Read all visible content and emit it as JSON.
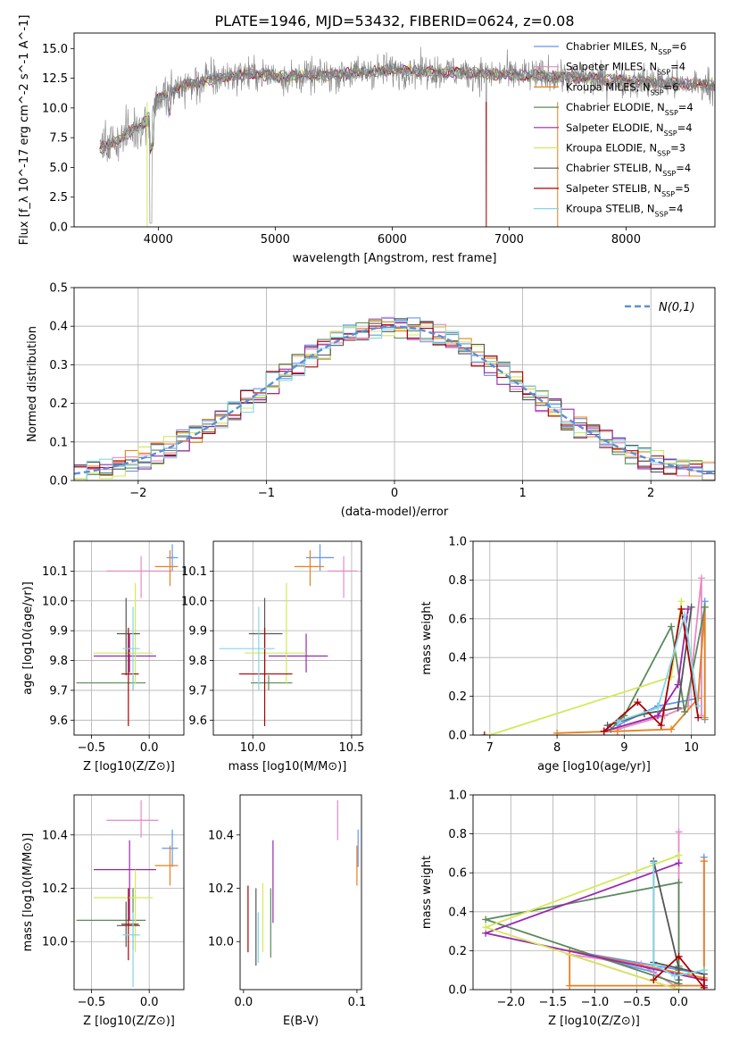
{
  "figure_title": "PLATE=1946, MJD=53432, FIBERID=0624, z=0.08",
  "colors": {
    "chab_miles": "#6495ed",
    "salp_miles": "#e78ac3",
    "krou_miles": "#e8801a",
    "chab_elodie": "#5b8a5b",
    "salp_elodie": "#9b27b0",
    "krou_elodie": "#d4e85a",
    "chab_stelib": "#555555",
    "salp_stelib": "#aa0000",
    "krou_stelib": "#80d8e6",
    "data": "#808080",
    "grid": "#b0b0b0"
  },
  "chart_data": [
    {
      "id": "spectrum",
      "type": "line",
      "title": "PLATE=1946, MJD=53432, FIBERID=0624, z=0.08",
      "xlabel": "wavelength [Angstrom, rest frame]",
      "ylabel": "Flux [f_λ 10^-17 erg cm^-2 s^-1 A^-1]",
      "xlim": [
        3280,
        8760
      ],
      "ylim": [
        0,
        16.3
      ],
      "xticks": [
        4000,
        5000,
        6000,
        7000,
        8000
      ],
      "yticks": [
        0.0,
        2.5,
        5.0,
        7.5,
        10.0,
        12.5,
        15.0
      ],
      "grid": false,
      "legend_position": "right",
      "legend": [
        {
          "key": "chab_miles",
          "label": "Chabrier MILES, N",
          "sub": "SSP",
          "tail": "=6"
        },
        {
          "key": "salp_miles",
          "label": "Salpeter MILES, N",
          "sub": "SSP",
          "tail": "=4"
        },
        {
          "key": "krou_miles",
          "label": "Kroupa MILES, N",
          "sub": "SSP",
          "tail": "=6"
        },
        {
          "key": "chab_elodie",
          "label": "Chabrier ELODIE, N",
          "sub": "SSP",
          "tail": "=4"
        },
        {
          "key": "salp_elodie",
          "label": "Salpeter ELODIE, N",
          "sub": "SSP",
          "tail": "=4"
        },
        {
          "key": "krou_elodie",
          "label": "Kroupa ELODIE, N",
          "sub": "SSP",
          "tail": "=3"
        },
        {
          "key": "chab_stelib",
          "label": "Chabrier STELIB, N",
          "sub": "SSP",
          "tail": "=4"
        },
        {
          "key": "salp_stelib",
          "label": "Salpeter STELIB, N",
          "sub": "SSP",
          "tail": "=5"
        },
        {
          "key": "krou_stelib",
          "label": "Kroupa STELIB, N",
          "sub": "SSP",
          "tail": "=4"
        }
      ],
      "continuum_x": [
        3500,
        3700,
        3900,
        4000,
        4200,
        4500,
        4800,
        5100,
        5500,
        6000,
        6500,
        7000,
        7500,
        8000,
        8500,
        8760
      ],
      "continuum_y": [
        6.5,
        7.6,
        8.9,
        10.8,
        11.8,
        12.5,
        12.9,
        12.6,
        12.8,
        13.2,
        13.0,
        12.8,
        12.6,
        12.3,
        12.0,
        11.9
      ]
    },
    {
      "id": "residuals",
      "type": "histogram",
      "xlabel": "(data-model)/error",
      "ylabel": "Normed distribution",
      "xlim": [
        -2.5,
        2.5
      ],
      "ylim": [
        0,
        0.5
      ],
      "xticks": [
        -2,
        -1,
        0,
        1,
        2
      ],
      "yticks": [
        0.0,
        0.1,
        0.2,
        0.3,
        0.4,
        0.5
      ],
      "grid": true,
      "legend_position": "top-right",
      "legend_label": "N(0,1)",
      "bin_start": -2.5,
      "bin_width": 0.1
    },
    {
      "id": "age_vs_Z",
      "type": "scatter",
      "xlabel": "Z [log10(Z/Z⊙)]",
      "ylabel": "age [log10(age/yr)]",
      "xlim": [
        -0.65,
        0.3
      ],
      "ylim": [
        9.55,
        10.2
      ],
      "xticks": [
        -0.5,
        0.0
      ],
      "xtick_labels": [
        "−0.5",
        "0.0"
      ],
      "yticks": [
        9.6,
        9.7,
        9.8,
        9.9,
        10.0,
        10.1
      ],
      "grid": true,
      "points": [
        {
          "key": "chab_miles",
          "x": 0.2,
          "y": 10.145,
          "xl": 0.15,
          "xh": 0.25,
          "yl": 10.1,
          "yh": 10.19
        },
        {
          "key": "salp_miles",
          "x": -0.07,
          "y": 10.1,
          "xl": -0.37,
          "xh": 0.2,
          "yl": 10.01,
          "yh": 10.15
        },
        {
          "key": "krou_miles",
          "x": 0.18,
          "y": 10.115,
          "xl": 0.05,
          "xh": 0.25,
          "yl": 10.05,
          "yh": 10.17
        },
        {
          "key": "chab_elodie",
          "x": -0.14,
          "y": 9.725,
          "xl": -0.63,
          "xh": -0.03,
          "yl": 9.7,
          "yh": 9.75
        },
        {
          "key": "salp_elodie",
          "x": -0.17,
          "y": 9.815,
          "xl": -0.48,
          "xh": 0.06,
          "yl": 9.76,
          "yh": 9.89
        },
        {
          "key": "krou_elodie",
          "x": -0.12,
          "y": 9.825,
          "xl": -0.48,
          "xh": 0.03,
          "yl": 9.72,
          "yh": 10.06
        },
        {
          "key": "chab_stelib",
          "x": -0.2,
          "y": 9.89,
          "xl": -0.28,
          "xh": -0.08,
          "yl": 9.75,
          "yh": 10.01
        },
        {
          "key": "salp_stelib",
          "x": -0.18,
          "y": 9.755,
          "xl": -0.24,
          "xh": -0.09,
          "yl": 9.58,
          "yh": 9.91
        },
        {
          "key": "krou_stelib",
          "x": -0.14,
          "y": 9.84,
          "xl": -0.23,
          "xh": -0.08,
          "yl": 9.7,
          "yh": 9.98
        }
      ]
    },
    {
      "id": "age_vs_mass",
      "type": "scatter",
      "xlabel": "mass [log10(M/M⊙)]",
      "ylabel": "",
      "xlim": [
        9.8,
        10.55
      ],
      "ylim": [
        9.55,
        10.2
      ],
      "xticks": [
        10.0,
        10.5
      ],
      "xtick_labels": [
        "10.0",
        "10.5"
      ],
      "yticks": [
        9.6,
        9.7,
        9.8,
        9.9,
        10.0,
        10.1
      ],
      "grid": true,
      "points": [
        {
          "key": "chab_miles",
          "x": 10.34,
          "y": 10.145,
          "xl": 10.27,
          "xh": 10.41,
          "yl": 10.1,
          "yh": 10.19
        },
        {
          "key": "salp_miles",
          "x": 10.46,
          "y": 10.1,
          "xl": 10.38,
          "xh": 10.53,
          "yl": 10.01,
          "yh": 10.15
        },
        {
          "key": "krou_miles",
          "x": 10.29,
          "y": 10.115,
          "xl": 10.21,
          "xh": 10.36,
          "yl": 10.05,
          "yh": 10.17
        },
        {
          "key": "chab_elodie",
          "x": 10.08,
          "y": 9.725,
          "xl": 9.99,
          "xh": 10.2,
          "yl": 9.7,
          "yh": 9.75
        },
        {
          "key": "salp_elodie",
          "x": 10.27,
          "y": 9.815,
          "xl": 10.08,
          "xh": 10.38,
          "yl": 9.76,
          "yh": 9.89
        },
        {
          "key": "krou_elodie",
          "x": 10.17,
          "y": 9.825,
          "xl": 9.96,
          "xh": 10.27,
          "yl": 9.72,
          "yh": 10.06
        },
        {
          "key": "chab_stelib",
          "x": 10.06,
          "y": 9.89,
          "xl": 9.98,
          "xh": 10.15,
          "yl": 9.75,
          "yh": 10.01
        },
        {
          "key": "salp_stelib",
          "x": 10.06,
          "y": 9.755,
          "xl": 9.93,
          "xh": 10.2,
          "yl": 9.58,
          "yh": 9.91
        },
        {
          "key": "krou_stelib",
          "x": 10.03,
          "y": 9.84,
          "xl": 9.83,
          "xh": 10.11,
          "yl": 9.7,
          "yh": 9.98
        }
      ]
    },
    {
      "id": "weight_vs_age",
      "type": "line",
      "xlabel": "age [log10(age/yr)]",
      "ylabel": "mass weight",
      "xlim": [
        6.75,
        10.35
      ],
      "ylim": [
        0,
        1
      ],
      "xticks": [
        7,
        8,
        9,
        10
      ],
      "yticks": [
        0.0,
        0.2,
        0.4,
        0.6,
        0.8,
        1.0
      ],
      "grid": true,
      "series": [
        {
          "key": "chab_miles",
          "x": [
            8.9,
            9.5,
            10.1,
            10.2,
            10.2
          ],
          "y": [
            0.05,
            0.15,
            0.19,
            0.69,
            0.08
          ]
        },
        {
          "key": "salp_miles",
          "x": [
            8.9,
            9.6,
            9.95,
            10.15,
            10.15
          ],
          "y": [
            0.03,
            0.1,
            0.15,
            0.81,
            0.1
          ]
        },
        {
          "key": "krou_miles",
          "x": [
            8.0,
            8.9,
            9.7,
            10.1,
            10.2,
            10.2
          ],
          "y": [
            0.01,
            0.02,
            0.03,
            0.19,
            0.66,
            0.09
          ]
        },
        {
          "key": "chab_elodie",
          "x": [
            8.8,
            9.0,
            9.7,
            9.9,
            10.2
          ],
          "y": [
            0.03,
            0.1,
            0.56,
            0.12,
            0.66
          ]
        },
        {
          "key": "salp_elodie",
          "x": [
            8.7,
            9.5,
            9.8,
            9.95
          ],
          "y": [
            0.02,
            0.1,
            0.26,
            0.65
          ]
        },
        {
          "key": "krou_elodie",
          "x": [
            7.0,
            9.7,
            9.85
          ],
          "y": [
            0.0,
            0.3,
            0.69
          ]
        },
        {
          "key": "chab_stelib",
          "x": [
            8.75,
            9.3,
            9.8,
            10.0
          ],
          "y": [
            0.05,
            0.11,
            0.14,
            0.66
          ]
        },
        {
          "key": "salp_stelib",
          "x": [
            8.7,
            9.2,
            9.55,
            9.85,
            10.1
          ],
          "y": [
            0.02,
            0.17,
            0.05,
            0.65,
            0.09
          ]
        },
        {
          "key": "krou_stelib",
          "x": [
            8.9,
            9.5,
            9.9,
            10.1
          ],
          "y": [
            0.07,
            0.14,
            0.62,
            0.15
          ]
        }
      ],
      "markers_only": [
        {
          "key": "salp_stelib",
          "x": 6.92,
          "y": 0.0
        }
      ]
    },
    {
      "id": "mass_vs_Z",
      "type": "scatter",
      "xlabel": "Z [log10(Z/Z⊙)]",
      "ylabel": "mass [log10(M/M⊙)]",
      "xlim": [
        -0.65,
        0.3
      ],
      "ylim": [
        9.82,
        10.55
      ],
      "xticks": [
        -0.5,
        0.0
      ],
      "xtick_labels": [
        "−0.5",
        "0.0"
      ],
      "yticks": [
        10.0,
        10.2,
        10.4
      ],
      "grid": true,
      "points": [
        {
          "key": "chab_miles",
          "x": 0.2,
          "y": 10.35,
          "xl": 0.11,
          "xh": 0.25,
          "yl": 10.28,
          "yh": 10.42
        },
        {
          "key": "salp_miles",
          "x": -0.07,
          "y": 10.455,
          "xl": -0.37,
          "xh": 0.08,
          "yl": 10.39,
          "yh": 10.53
        },
        {
          "key": "krou_miles",
          "x": 0.18,
          "y": 10.285,
          "xl": 0.05,
          "xh": 0.25,
          "yl": 10.21,
          "yh": 10.36
        },
        {
          "key": "chab_elodie",
          "x": -0.14,
          "y": 10.08,
          "xl": -0.63,
          "xh": -0.03,
          "yl": 9.97,
          "yh": 10.2
        },
        {
          "key": "salp_elodie",
          "x": -0.17,
          "y": 10.27,
          "xl": -0.48,
          "xh": 0.06,
          "yl": 10.08,
          "yh": 10.38
        },
        {
          "key": "krou_elodie",
          "x": -0.12,
          "y": 10.165,
          "xl": -0.48,
          "xh": 0.03,
          "yl": 9.96,
          "yh": 10.27
        },
        {
          "key": "chab_stelib",
          "x": -0.2,
          "y": 10.06,
          "xl": -0.28,
          "xh": -0.08,
          "yl": 9.98,
          "yh": 10.15
        },
        {
          "key": "salp_stelib",
          "x": -0.18,
          "y": 10.065,
          "xl": -0.24,
          "xh": -0.09,
          "yl": 9.93,
          "yh": 10.2
        },
        {
          "key": "krou_stelib",
          "x": -0.14,
          "y": 10.025,
          "xl": -0.23,
          "xh": -0.08,
          "yl": 9.83,
          "yh": 10.11
        }
      ]
    },
    {
      "id": "mass_vs_ebv",
      "type": "scatter",
      "xlabel": "E(B-V)",
      "ylabel": "",
      "xlim": [
        -0.003,
        0.104
      ],
      "ylim": [
        9.82,
        10.55
      ],
      "xticks": [
        0.0,
        0.1
      ],
      "xtick_labels": [
        "0.0",
        "0.1"
      ],
      "yticks": [
        10.0,
        10.2,
        10.4
      ],
      "grid": false,
      "points": [
        {
          "key": "chab_miles",
          "x": 0.101,
          "y": 10.35,
          "yl": 10.28,
          "yh": 10.42
        },
        {
          "key": "salp_miles",
          "x": 0.083,
          "y": 10.455,
          "yl": 10.38,
          "yh": 10.53
        },
        {
          "key": "krou_miles",
          "x": 0.1,
          "y": 10.285,
          "yl": 10.21,
          "yh": 10.36
        },
        {
          "key": "chab_elodie",
          "x": 0.024,
          "y": 10.08,
          "yl": 9.94,
          "yh": 10.2
        },
        {
          "key": "salp_elodie",
          "x": 0.026,
          "y": 10.27,
          "yl": 10.07,
          "yh": 10.38
        },
        {
          "key": "krou_elodie",
          "x": 0.017,
          "y": 10.165,
          "yl": 9.96,
          "yh": 10.22
        },
        {
          "key": "chab_stelib",
          "x": 0.011,
          "y": 10.06,
          "yl": 9.91,
          "yh": 10.2
        },
        {
          "key": "salp_stelib",
          "x": 0.004,
          "y": 10.065,
          "yl": 9.96,
          "yh": 10.21
        },
        {
          "key": "krou_stelib",
          "x": 0.013,
          "y": 10.025,
          "yl": 9.92,
          "yh": 10.11
        }
      ]
    },
    {
      "id": "weight_vs_Z",
      "type": "line",
      "xlabel": "Z [log10(Z/Z⊙)]",
      "ylabel": "mass weight",
      "xlim": [
        -2.45,
        0.43
      ],
      "ylim": [
        0,
        1
      ],
      "xticks": [
        -2.0,
        -1.5,
        -1.0,
        -0.5,
        0.0
      ],
      "xtick_labels": [
        "−2.0",
        "−1.5",
        "−1.0",
        "−0.5",
        "0.0"
      ],
      "yticks": [
        0.0,
        0.2,
        0.4,
        0.6,
        0.8,
        1.0
      ],
      "grid": true,
      "series": [
        {
          "key": "chab_miles",
          "x": [
            0.3,
            0.3,
            -1.3,
            -0.3,
            -0.3
          ],
          "y": [
            0.68,
            0.08,
            0.2,
            0.09,
            0.14
          ]
        },
        {
          "key": "salp_miles",
          "x": [
            0.3,
            -0.05,
            -0.45,
            -1.3,
            0.0,
            0.0
          ],
          "y": [
            0.02,
            0.02,
            0.13,
            0.18,
            0.0,
            0.81
          ]
        },
        {
          "key": "krou_miles",
          "x": [
            0.3,
            0.3,
            -1.3,
            -1.3,
            0.3,
            0.3
          ],
          "y": [
            0.66,
            0.02,
            0.02,
            0.2,
            0.06,
            0.66
          ]
        },
        {
          "key": "chab_elodie",
          "x": [
            0.0,
            0.0,
            -2.3,
            0.0,
            0.0
          ],
          "y": [
            0.12,
            0.03,
            0.36,
            0.55,
            0.1
          ]
        },
        {
          "key": "salp_elodie",
          "x": [
            0.3,
            0.3,
            -2.3,
            0.0
          ],
          "y": [
            0.02,
            0.05,
            0.29,
            0.65
          ]
        },
        {
          "key": "krou_elodie",
          "x": [
            0.0,
            -2.3,
            0.0
          ],
          "y": [
            0.69,
            0.32,
            0.0
          ]
        },
        {
          "key": "chab_stelib",
          "x": [
            0.3,
            -0.3,
            -0.3,
            0.0,
            0.0
          ],
          "y": [
            0.08,
            0.14,
            0.66,
            0.11,
            0.05
          ]
        },
        {
          "key": "salp_stelib",
          "x": [
            -0.3,
            0.0,
            0.3,
            0.3
          ],
          "y": [
            0.05,
            0.17,
            0.01,
            0.05
          ]
        },
        {
          "key": "krou_stelib",
          "x": [
            -0.3,
            -0.3,
            -0.05,
            0.3
          ],
          "y": [
            0.65,
            0.13,
            0.07,
            0.1
          ]
        }
      ]
    }
  ]
}
